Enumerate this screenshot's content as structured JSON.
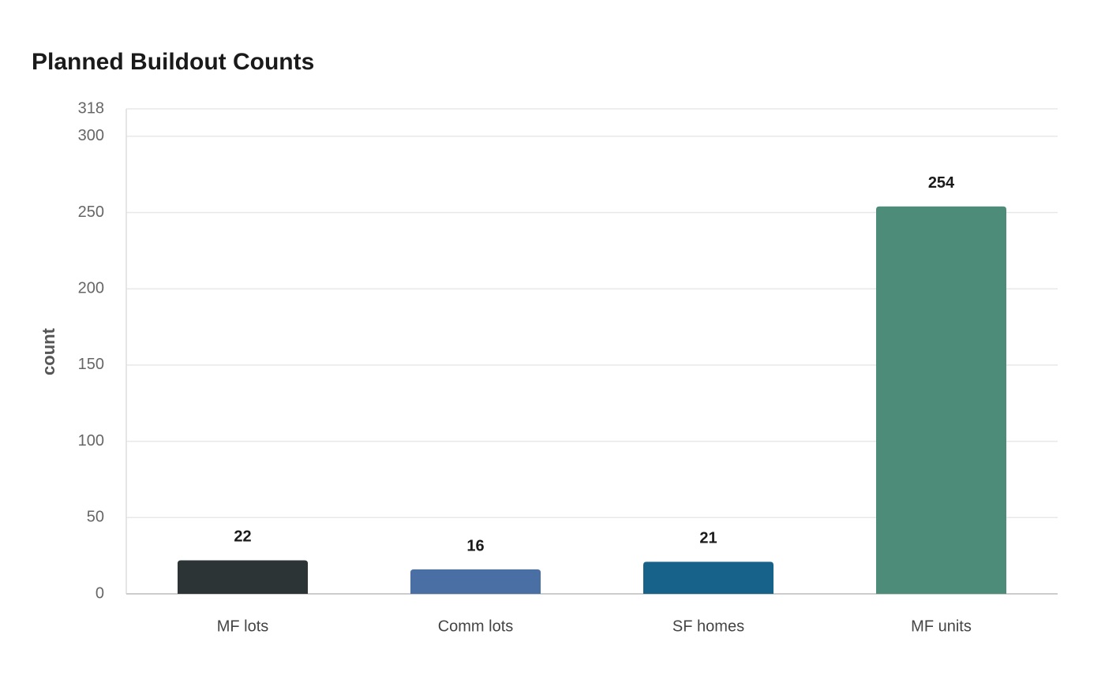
{
  "chart_data": {
    "type": "bar",
    "title": "Planned Buildout Counts",
    "y_label": "count",
    "categories": [
      "MF lots",
      "Comm lots",
      "SF homes",
      "MF units"
    ],
    "values": [
      22,
      16,
      21,
      254
    ],
    "colors": [
      "#2d3436",
      "#4a6fa5",
      "#17628a",
      "#4e8c7a"
    ],
    "ylim": [
      0,
      318
    ],
    "yticks": [
      0,
      50,
      100,
      150,
      200,
      250,
      300,
      318
    ],
    "grid": true
  }
}
